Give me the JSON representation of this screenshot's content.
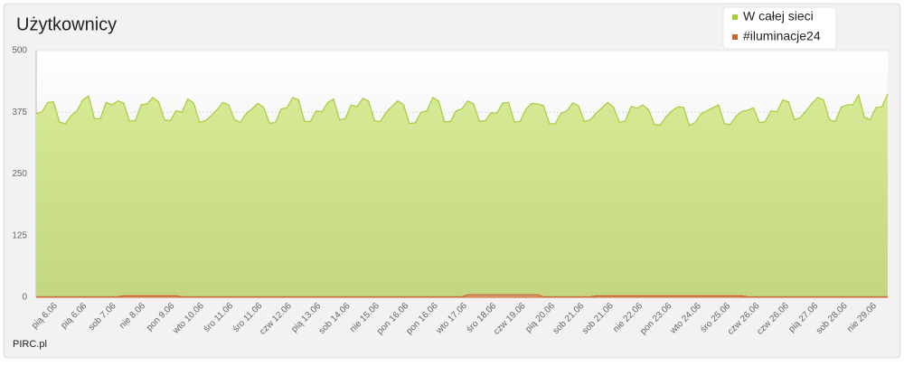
{
  "chart_data": {
    "type": "area",
    "title": "Użytkownicy",
    "footer": "PIRC.pl",
    "ylim": [
      0,
      500
    ],
    "yticks": [
      0,
      125,
      250,
      375,
      500
    ],
    "grid": true,
    "legend": "top-right",
    "xtick_labels": [
      "pią 6.06",
      "pią 6.06",
      "sob 7.06",
      "nie 8.06",
      "pon 9.06",
      "wto 10.06",
      "śro 11.06",
      "śro 11.06",
      "czw 12.06",
      "pią 13.06",
      "sob 14.06",
      "nie 15.06",
      "pon 16.06",
      "pon 16.06",
      "wto 17.06",
      "śro 18.06",
      "czw 19.06",
      "pią 20.06",
      "sob 21.06",
      "sob 21.06",
      "nie 22.06",
      "pon 23.06",
      "wto 24.06",
      "śro 25.06",
      "czw 26.06",
      "czw 26.06",
      "pią 27.06",
      "sob 28.06",
      "nie 29.06"
    ],
    "series": [
      {
        "name": "W całej sieci",
        "color": "#a8cc3a",
        "values": [
          372,
          376,
          395,
          396,
          355,
          352,
          368,
          378,
          400,
          408,
          362,
          362,
          395,
          390,
          398,
          394,
          357,
          358,
          390,
          392,
          405,
          396,
          360,
          358,
          378,
          375,
          402,
          394,
          355,
          358,
          368,
          380,
          395,
          390,
          360,
          355,
          372,
          382,
          393,
          385,
          353,
          354,
          382,
          384,
          405,
          400,
          357,
          356,
          378,
          376,
          395,
          402,
          360,
          362,
          390,
          386,
          403,
          398,
          358,
          356,
          375,
          387,
          398,
          390,
          352,
          354,
          375,
          378,
          405,
          398,
          356,
          356,
          378,
          382,
          398,
          392,
          357,
          358,
          374,
          373,
          394,
          395,
          355,
          357,
          382,
          393,
          392,
          388,
          352,
          352,
          373,
          378,
          394,
          388,
          356,
          360,
          373,
          384,
          395,
          385,
          355,
          357,
          387,
          383,
          390,
          380,
          350,
          349,
          366,
          378,
          386,
          385,
          348,
          354,
          372,
          378,
          384,
          390,
          352,
          350,
          367,
          377,
          379,
          384,
          354,
          356,
          378,
          376,
          400,
          396,
          360,
          364,
          378,
          393,
          405,
          400,
          360,
          356,
          385,
          390,
          390,
          410,
          365,
          360,
          385,
          386,
          412
        ]
      },
      {
        "name": "#iluminacje24",
        "color": "#cc6633",
        "values": [
          1,
          1,
          1,
          1,
          1,
          1,
          1,
          1,
          1,
          1,
          1,
          1,
          1,
          1,
          1,
          3,
          3,
          3,
          3,
          3,
          3,
          3,
          3,
          3,
          3,
          1,
          1,
          1,
          1,
          1,
          1,
          1,
          1,
          1,
          1,
          1,
          1,
          1,
          1,
          1,
          1,
          1,
          1,
          1,
          1,
          1,
          1,
          1,
          1,
          1,
          1,
          1,
          1,
          1,
          1,
          1,
          1,
          1,
          1,
          1,
          1,
          1,
          1,
          1,
          1,
          1,
          1,
          1,
          1,
          1,
          1,
          1,
          1,
          1,
          5,
          5,
          5,
          5,
          5,
          5,
          5,
          5,
          5,
          5,
          5,
          5,
          5,
          1,
          1,
          1,
          1,
          1,
          1,
          1,
          1,
          1,
          3,
          3,
          3,
          3,
          3,
          3,
          3,
          3,
          3,
          3,
          3,
          3,
          3,
          3,
          3,
          3,
          3,
          3,
          3,
          3,
          3,
          3,
          3,
          3,
          3,
          3,
          1,
          1,
          1,
          1,
          1,
          1,
          1,
          1,
          1,
          1,
          1,
          1,
          1,
          1,
          1,
          1,
          1,
          1,
          1,
          1,
          1,
          1,
          1,
          1,
          1
        ]
      }
    ]
  }
}
